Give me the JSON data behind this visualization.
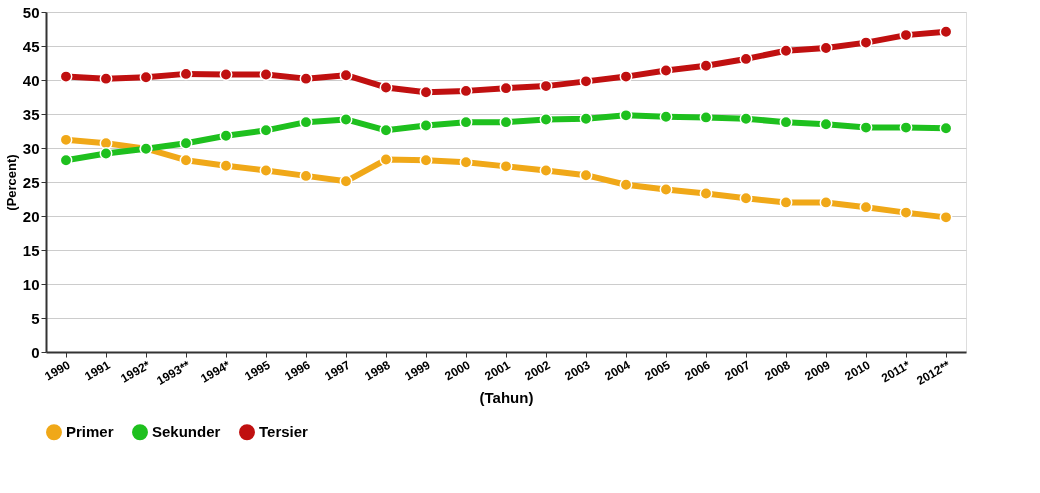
{
  "chart_data": {
    "type": "line",
    "xlabel": "(Tahun)",
    "ylabel": "(Percent)",
    "categories": [
      "1990",
      "1991",
      "1992*",
      "1993**",
      "1994*",
      "1995",
      "1996",
      "1997",
      "1998",
      "1999",
      "2000",
      "2001",
      "2002",
      "2003",
      "2004",
      "2005",
      "2006",
      "2007",
      "2008",
      "2009",
      "2010",
      "2011*",
      "2012**"
    ],
    "series": [
      {
        "name": "Primer",
        "color": "#f0a818",
        "values": [
          31.2,
          30.7,
          29.9,
          28.2,
          27.4,
          26.7,
          25.9,
          25.1,
          28.3,
          28.2,
          27.9,
          27.3,
          26.7,
          26.0,
          24.6,
          23.9,
          23.3,
          22.6,
          22.0,
          22.0,
          21.3,
          20.5,
          19.8
        ]
      },
      {
        "name": "Sekunder",
        "color": "#1ec01e",
        "values": [
          28.2,
          29.2,
          29.9,
          30.7,
          31.8,
          32.6,
          33.8,
          34.2,
          32.6,
          33.3,
          33.8,
          33.8,
          34.2,
          34.3,
          34.8,
          34.6,
          34.5,
          34.3,
          33.8,
          33.5,
          33.0,
          33.0,
          32.9
        ]
      },
      {
        "name": "Tersier",
        "color": "#c01010",
        "values": [
          40.5,
          40.2,
          40.4,
          40.9,
          40.8,
          40.8,
          40.2,
          40.7,
          38.9,
          38.2,
          38.4,
          38.8,
          39.1,
          39.8,
          40.5,
          41.4,
          42.1,
          43.1,
          44.3,
          44.7,
          45.5,
          46.6,
          47.1
        ]
      }
    ],
    "ylim": [
      0,
      50
    ],
    "yticks": [
      0,
      5,
      10,
      15,
      20,
      25,
      30,
      35,
      40,
      45,
      50
    ],
    "grid": "y",
    "legend": "bottom",
    "marker": "circle",
    "line_style": "solid"
  }
}
